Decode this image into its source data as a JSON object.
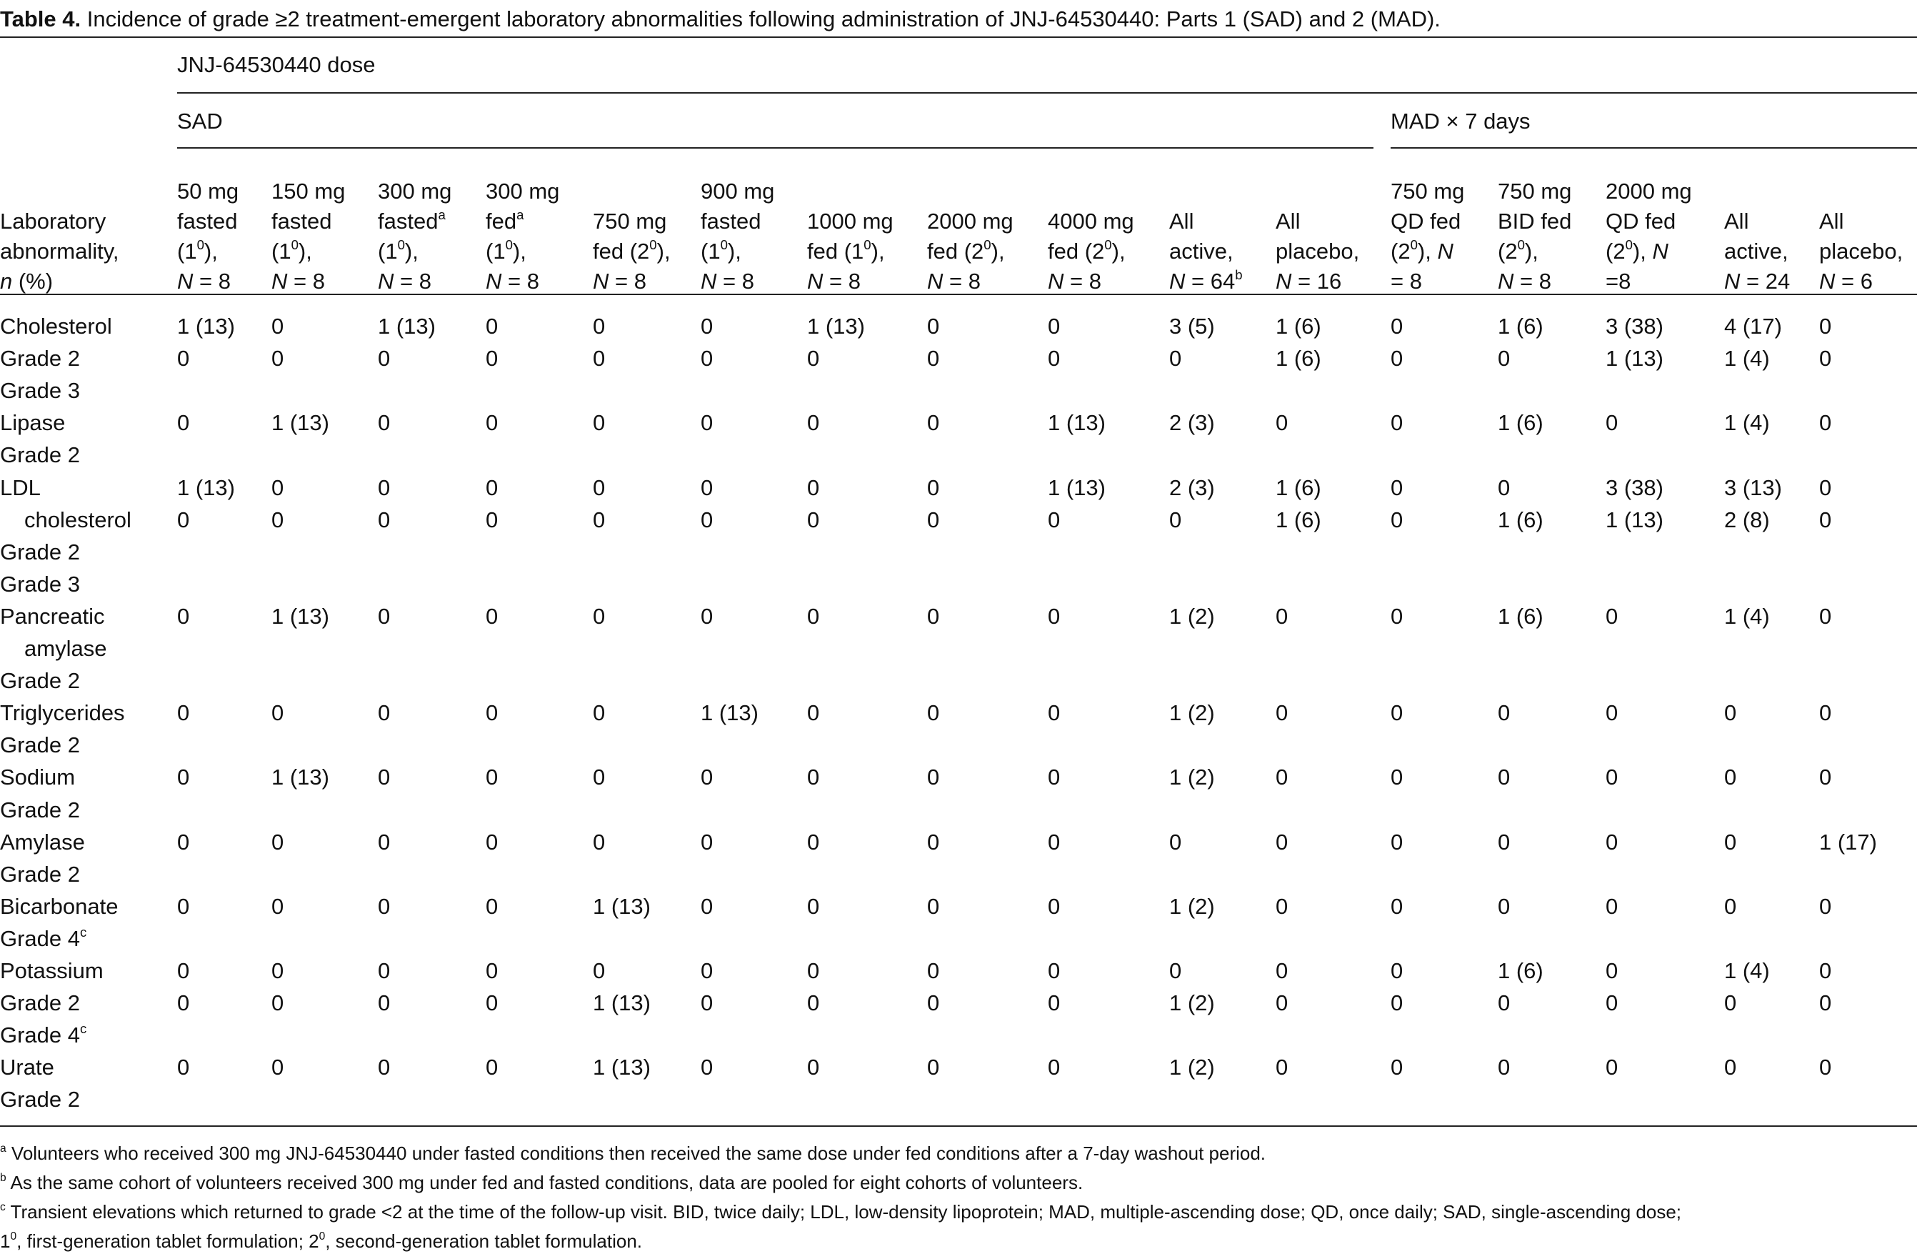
{
  "table": {
    "title": [
      {
        "b": "Table 4."
      },
      " Incidence of grade ≥2 treatment-emergent laboratory abnormalities following administration of JNJ-64530440: Parts 1 (SAD) and 2 (MAD)."
    ],
    "group_header": "JNJ-64530440 dose",
    "sad_header": "SAD",
    "mad_header": "MAD × 7 days",
    "columns": [
      [
        [
          "Laboratory"
        ],
        [
          "abnormality,"
        ],
        [
          {
            "i": "n"
          },
          " (%)"
        ]
      ],
      [
        [
          "50 mg"
        ],
        [
          "fasted"
        ],
        [
          "(1",
          {
            "sup": "0"
          },
          "),"
        ],
        [
          {
            "i": "N"
          },
          " = 8"
        ]
      ],
      [
        [
          "150 mg"
        ],
        [
          "fasted"
        ],
        [
          "(1",
          {
            "sup": "0"
          },
          "),"
        ],
        [
          {
            "i": "N"
          },
          " = 8"
        ]
      ],
      [
        [
          "300 mg"
        ],
        [
          "fasted",
          {
            "sup": "a"
          }
        ],
        [
          "(1",
          {
            "sup": "0"
          },
          "),"
        ],
        [
          {
            "i": "N"
          },
          " = 8"
        ]
      ],
      [
        [
          "300 mg"
        ],
        [
          "fed",
          {
            "sup": "a"
          }
        ],
        [
          "(1",
          {
            "sup": "0"
          },
          "),"
        ],
        [
          {
            "i": "N"
          },
          " = 8"
        ]
      ],
      [
        [
          "750 mg"
        ],
        [
          "fed (2",
          {
            "sup": "0"
          },
          "),"
        ],
        [
          {
            "i": "N"
          },
          " = 8"
        ]
      ],
      [
        [
          "900 mg"
        ],
        [
          "fasted"
        ],
        [
          "(1",
          {
            "sup": "0"
          },
          "),"
        ],
        [
          {
            "i": "N"
          },
          " = 8"
        ]
      ],
      [
        [
          "1000 mg"
        ],
        [
          "fed (1",
          {
            "sup": "0"
          },
          "),"
        ],
        [
          {
            "i": "N"
          },
          " = 8"
        ]
      ],
      [
        [
          "2000 mg"
        ],
        [
          "fed (2",
          {
            "sup": "0"
          },
          "),"
        ],
        [
          {
            "i": "N"
          },
          " = 8"
        ]
      ],
      [
        [
          "4000 mg"
        ],
        [
          "fed (2",
          {
            "sup": "0"
          },
          "),"
        ],
        [
          {
            "i": "N"
          },
          " = 8"
        ]
      ],
      [
        [
          "All"
        ],
        [
          "active,"
        ],
        [
          {
            "i": "N"
          },
          " = 64",
          {
            "sup": "b"
          }
        ]
      ],
      [
        [
          "All"
        ],
        [
          "placebo,"
        ],
        [
          {
            "i": "N"
          },
          " = 16"
        ]
      ],
      [
        [
          "750 mg"
        ],
        [
          "QD fed"
        ],
        [
          "(2",
          {
            "sup": "0"
          },
          "), ",
          {
            "i": "N"
          }
        ],
        [
          "= 8"
        ]
      ],
      [
        [
          "750 mg"
        ],
        [
          "BID fed"
        ],
        [
          "(2",
          {
            "sup": "0"
          },
          "),"
        ],
        [
          {
            "i": "N"
          },
          " = 8"
        ]
      ],
      [
        [
          "2000 mg"
        ],
        [
          "QD fed"
        ],
        [
          "(2",
          {
            "sup": "0"
          },
          "), ",
          {
            "i": "N"
          }
        ],
        [
          "=8"
        ]
      ],
      [
        [
          "All"
        ],
        [
          "active,"
        ],
        [
          {
            "i": "N"
          },
          " = 24"
        ]
      ],
      [
        [
          "All"
        ],
        [
          "placebo,"
        ],
        [
          {
            "i": "N"
          },
          " = 6"
        ]
      ]
    ],
    "rows": [
      {
        "label": [
          "Cholesterol"
        ],
        "cells": [
          "1 (13)",
          "0",
          "1 (13)",
          "0",
          "0",
          "0",
          "1 (13)",
          "0",
          "0",
          "3 (5)",
          "1 (6)",
          "0",
          "1 (6)",
          "3 (38)",
          "4 (17)",
          "0"
        ]
      },
      {
        "label": [
          "Grade 2"
        ],
        "cells": [
          "0",
          "0",
          "0",
          "0",
          "0",
          "0",
          "0",
          "0",
          "0",
          "0",
          "1 (6)",
          "0",
          "0",
          "1 (13)",
          "1 (4)",
          "0"
        ]
      },
      {
        "label": [
          "Grade 3"
        ]
      },
      {
        "label": [
          "Lipase"
        ],
        "cells": [
          "0",
          "1 (13)",
          "0",
          "0",
          "0",
          "0",
          "0",
          "0",
          "1 (13)",
          "2 (3)",
          "0",
          "0",
          "1 (6)",
          "0",
          "1 (4)",
          "0"
        ]
      },
      {
        "label": [
          "Grade 2"
        ]
      },
      {
        "label": [
          "LDL"
        ],
        "cells": [
          "1 (13)",
          "0",
          "0",
          "0",
          "0",
          "0",
          "0",
          "0",
          "1 (13)",
          "2 (3)",
          "1 (6)",
          "0",
          "0",
          "3 (38)",
          "3 (13)",
          "0"
        ]
      },
      {
        "label": [
          "cholesterol"
        ],
        "indent": true,
        "cells": [
          "0",
          "0",
          "0",
          "0",
          "0",
          "0",
          "0",
          "0",
          "0",
          "0",
          "1 (6)",
          "0",
          "1 (6)",
          "1 (13)",
          "2 (8)",
          "0"
        ]
      },
      {
        "label": [
          "Grade 2"
        ]
      },
      {
        "label": [
          "Grade 3"
        ]
      },
      {
        "label": [
          "Pancreatic"
        ],
        "cells": [
          "0",
          "1 (13)",
          "0",
          "0",
          "0",
          "0",
          "0",
          "0",
          "0",
          "1 (2)",
          "0",
          "0",
          "1 (6)",
          "0",
          "1 (4)",
          "0"
        ]
      },
      {
        "label": [
          "amylase"
        ],
        "indent": true
      },
      {
        "label": [
          "Grade 2"
        ]
      },
      {
        "label": [
          "Triglycerides"
        ],
        "cells": [
          "0",
          "0",
          "0",
          "0",
          "0",
          "1 (13)",
          "0",
          "0",
          "0",
          "1 (2)",
          "0",
          "0",
          "0",
          "0",
          "0",
          "0"
        ]
      },
      {
        "label": [
          "Grade 2"
        ]
      },
      {
        "label": [
          "Sodium"
        ],
        "cells": [
          "0",
          "1 (13)",
          "0",
          "0",
          "0",
          "0",
          "0",
          "0",
          "0",
          "1 (2)",
          "0",
          "0",
          "0",
          "0",
          "0",
          "0"
        ]
      },
      {
        "label": [
          "Grade 2"
        ]
      },
      {
        "label": [
          "Amylase"
        ],
        "cells": [
          "0",
          "0",
          "0",
          "0",
          "0",
          "0",
          "0",
          "0",
          "0",
          "0",
          "0",
          "0",
          "0",
          "0",
          "0",
          "1 (17)"
        ]
      },
      {
        "label": [
          "Grade 2"
        ]
      },
      {
        "label": [
          "Bicarbonate"
        ],
        "cells": [
          "0",
          "0",
          "0",
          "0",
          "1 (13)",
          "0",
          "0",
          "0",
          "0",
          "1 (2)",
          "0",
          "0",
          "0",
          "0",
          "0",
          "0"
        ]
      },
      {
        "label": [
          "Grade 4",
          {
            "sup": "c"
          }
        ]
      },
      {
        "label": [
          "Potassium"
        ],
        "cells": [
          "0",
          "0",
          "0",
          "0",
          "0",
          "0",
          "0",
          "0",
          "0",
          "0",
          "0",
          "0",
          "1 (6)",
          "0",
          "1 (4)",
          "0"
        ]
      },
      {
        "label": [
          "Grade 2"
        ],
        "cells": [
          "0",
          "0",
          "0",
          "0",
          "1 (13)",
          "0",
          "0",
          "0",
          "0",
          "1 (2)",
          "0",
          "0",
          "0",
          "0",
          "0",
          "0"
        ]
      },
      {
        "label": [
          "Grade 4",
          {
            "sup": "c"
          }
        ]
      },
      {
        "label": [
          "Urate"
        ],
        "cells": [
          "0",
          "0",
          "0",
          "0",
          "1 (13)",
          "0",
          "0",
          "0",
          "0",
          "1 (2)",
          "0",
          "0",
          "0",
          "0",
          "0",
          "0"
        ]
      },
      {
        "label": [
          "Grade 2"
        ]
      }
    ],
    "footnotes": [
      [
        [
          {
            "sup": "a"
          },
          " Volunteers who received 300 mg JNJ-64530440 under fasted conditions then received the same dose under fed conditions after a 7-day washout period."
        ]
      ],
      [
        [
          {
            "sup": "b"
          },
          " As the same cohort of volunteers received 300 mg under fed and fasted conditions, data are pooled for eight cohorts of volunteers."
        ]
      ],
      [
        [
          {
            "sup": "c"
          },
          " Transient elevations which returned to grade <2 at the time of the follow-up visit. BID, twice daily; LDL, low-density lipoprotein; MAD, multiple-ascending dose; QD, once daily; SAD, single-ascending dose;"
        ],
        [
          "1",
          {
            "sup": "0"
          },
          ", first-generation tablet formulation; 2",
          {
            "sup": "0"
          },
          ", second-generation tablet formulation."
        ]
      ]
    ]
  }
}
